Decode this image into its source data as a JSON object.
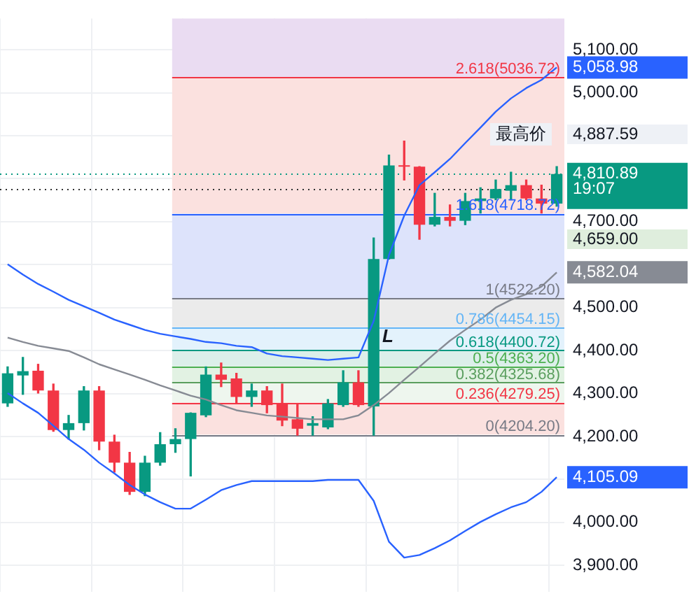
{
  "chart_data": {
    "type": "candlestick",
    "categories": [
      null,
      null,
      null,
      null,
      null,
      null,
      null,
      null,
      null,
      null,
      null,
      null,
      null,
      null,
      null,
      null,
      null,
      null,
      null,
      null,
      null,
      null,
      null,
      null,
      null,
      null,
      null,
      null,
      null,
      null,
      null,
      null,
      null,
      null,
      null,
      null,
      null
    ],
    "ohlc": [
      [
        4277,
        4362,
        4270,
        4347
      ],
      [
        4342,
        4384,
        4298,
        4352
      ],
      [
        4353,
        4368,
        4301,
        4307
      ],
      [
        4307,
        4322,
        4212,
        4215
      ],
      [
        4215,
        4249,
        4194,
        4231
      ],
      [
        4231,
        4316,
        4215,
        4307
      ],
      [
        4307,
        4316,
        4169,
        4188
      ],
      [
        4188,
        4203,
        4117,
        4139
      ],
      [
        4139,
        4163,
        4065,
        4071
      ],
      [
        4071,
        4154,
        4062,
        4139
      ],
      [
        4139,
        4209,
        4133,
        4182
      ],
      [
        4182,
        4218,
        4163,
        4194
      ],
      [
        4194,
        4255,
        4108,
        4255
      ],
      [
        4249,
        4362,
        4246,
        4344
      ],
      [
        4344,
        4371,
        4316,
        4332
      ],
      [
        4335,
        4347,
        4277,
        4292
      ],
      [
        4292,
        4322,
        4270,
        4307
      ],
      [
        4307,
        4316,
        4255,
        4273
      ],
      [
        4277,
        4322,
        4225,
        4237
      ],
      [
        4240,
        4277,
        4203,
        4218
      ],
      [
        4225,
        4246,
        4203,
        4231
      ],
      [
        4221,
        4286,
        4218,
        4277
      ],
      [
        4273,
        4353,
        4270,
        4326
      ],
      [
        4326,
        4353,
        4270,
        4273
      ],
      [
        4270,
        4662,
        4203,
        4613
      ],
      [
        4613,
        4855,
        4613,
        4831
      ],
      [
        4831,
        4887.59,
        4797,
        4828
      ],
      [
        4828,
        4828,
        4659,
        4693
      ],
      [
        4693,
        4766,
        4690,
        4711
      ],
      [
        4711,
        4739,
        4690,
        4702
      ],
      [
        4702,
        4766,
        4693,
        4748
      ],
      [
        4748,
        4779,
        4720,
        4754
      ],
      [
        4754,
        4797,
        4751,
        4776
      ],
      [
        4772,
        4815,
        4751,
        4785
      ],
      [
        4785,
        4797,
        4751,
        4754
      ],
      [
        4754,
        4785,
        4720,
        4742
      ],
      [
        4742,
        4828,
        4736,
        4810.89
      ]
    ],
    "colors": [
      "#089981",
      "#089981",
      "#f23645",
      "#f23645",
      "#089981",
      "#089981",
      "#f23645",
      "#f23645",
      "#f23645",
      "#089981",
      "#089981",
      "#089981",
      "#089981",
      "#089981",
      "#f23645",
      "#f23645",
      "#089981",
      "#f23645",
      "#f23645",
      "#f23645",
      "#089981",
      "#089981",
      "#089981",
      "#f23645",
      "#089981",
      "#089981",
      "#f23645",
      "#f23645",
      "#089981",
      "#f23645",
      "#089981",
      "#089981",
      "#089981",
      "#089981",
      "#f23645",
      "#f23645",
      "#089981"
    ],
    "value_labels": [
      null,
      null,
      null,
      null,
      null,
      null,
      null,
      null,
      null,
      null,
      null,
      null,
      null,
      null,
      null,
      null,
      null,
      null,
      null,
      null,
      null,
      null,
      null,
      null,
      null,
      null,
      null,
      null,
      null,
      null,
      null,
      null,
      null,
      null,
      null,
      null,
      "4,810.89"
    ],
    "series": [
      {
        "type": "line",
        "color": "#2962ff",
        "values": [
          4601,
          4577,
          4555,
          4537,
          4518,
          4503,
          4488,
          4472,
          4460,
          4448,
          4439,
          4433,
          4427,
          4420,
          4417,
          4411,
          4408,
          4393,
          4387,
          4384,
          4381,
          4378,
          4381,
          4384,
          4469,
          4622,
          4714,
          4785,
          4815,
          4846,
          4883,
          4919,
          4956,
          4987,
          5011,
          5030,
          5058.98
        ],
        "value_labels": [
          null,
          null,
          null,
          null,
          null,
          null,
          null,
          null,
          null,
          null,
          null,
          null,
          null,
          null,
          null,
          null,
          null,
          null,
          null,
          null,
          null,
          null,
          null,
          null,
          null,
          null,
          null,
          null,
          null,
          null,
          null,
          null,
          null,
          null,
          null,
          null,
          "5,058.98"
        ]
      },
      {
        "type": "line",
        "color": "#878b94",
        "values": [
          4430,
          4420,
          4411,
          4405,
          4399,
          4384,
          4368,
          4356,
          4344,
          4332,
          4319,
          4307,
          4295,
          4286,
          4273,
          4261,
          4255,
          4249,
          4246,
          4243,
          4240,
          4240,
          4240,
          4249,
          4273,
          4301,
          4332,
          4362,
          4393,
          4423,
          4448,
          4472,
          4500,
          4518,
          4531,
          4549,
          4582.04
        ],
        "value_labels": [
          null,
          null,
          null,
          null,
          null,
          null,
          null,
          null,
          null,
          null,
          null,
          null,
          null,
          null,
          null,
          null,
          null,
          null,
          null,
          null,
          null,
          null,
          null,
          null,
          null,
          null,
          null,
          null,
          null,
          null,
          null,
          null,
          null,
          null,
          null,
          null,
          "4,582.04"
        ]
      },
      {
        "type": "line",
        "color": "#2962ff",
        "values": [
          4301,
          4277,
          4255,
          4225,
          4194,
          4169,
          4139,
          4114,
          4087,
          4065,
          4047,
          4032,
          4032,
          4053,
          4075,
          4087,
          4096,
          4096,
          4096,
          4096,
          4096,
          4099,
          4099,
          4099,
          4050,
          3955,
          3918,
          3924,
          3940,
          3958,
          3980,
          4001,
          4019,
          4035,
          4047,
          4071,
          4105.09
        ],
        "value_labels": [
          null,
          null,
          null,
          null,
          null,
          null,
          null,
          null,
          null,
          null,
          null,
          null,
          null,
          null,
          null,
          null,
          null,
          null,
          null,
          null,
          null,
          null,
          null,
          null,
          null,
          null,
          null,
          null,
          null,
          null,
          null,
          null,
          null,
          null,
          null,
          null,
          "4,105.09"
        ]
      }
    ],
    "ylim": [
      3839,
      5173
    ],
    "yticks": [
      {
        "value": 5100,
        "label": "5,100.00"
      },
      {
        "value": 5000,
        "label": "5,000.00"
      },
      {
        "value": 4900,
        "label": null
      },
      {
        "value": 4800,
        "label": null
      },
      {
        "value": 4700,
        "label": "4,700.00"
      },
      {
        "value": 4600,
        "label": null
      },
      {
        "value": 4500,
        "label": "4,500.00"
      },
      {
        "value": 4400,
        "label": "4,400.00"
      },
      {
        "value": 4300,
        "label": "4,300.00"
      },
      {
        "value": 4200,
        "label": "4,200.00"
      },
      {
        "value": 4100,
        "label": null
      },
      {
        "value": 4000,
        "label": "4,000.00"
      },
      {
        "value": 3900,
        "label": "3,900.00"
      }
    ],
    "ref_lines": [
      {
        "axis": "y",
        "value": 5036.72,
        "label": "2.618(5036.72)",
        "color": "#f23645"
      },
      {
        "axis": "y",
        "value": 4718.72,
        "label": "1.618(4718.72)",
        "color": "#2962ff"
      },
      {
        "axis": "y",
        "value": 4522.2,
        "label": "1(4522.20)",
        "color": "#787b86"
      },
      {
        "axis": "y",
        "value": 4454.15,
        "label": "0.786(4454.15)",
        "color": "#64b5f6"
      },
      {
        "axis": "y",
        "value": 4400.72,
        "label": "0.618(4400.72)",
        "color": "#089981"
      },
      {
        "axis": "y",
        "value": 4363.2,
        "label": "0.5(4363.20)",
        "color": "#4caf50"
      },
      {
        "axis": "y",
        "value": 4325.68,
        "label": "0.382(4325.68)",
        "color": "#5a9e5e"
      },
      {
        "axis": "y",
        "value": 4279.25,
        "label": "0.236(4279.25)",
        "color": "#f23645"
      },
      {
        "axis": "y",
        "value": 4204.2,
        "label": "0(4204.20)",
        "color": "#787b86"
      },
      {
        "axis": "y",
        "value": 4810.89,
        "color": "#089981",
        "line_style": "dotted"
      },
      {
        "axis": "y",
        "value": 4776,
        "color": "#333333",
        "line_style": "dotted"
      }
    ],
    "bands": [
      {
        "axis": "y",
        "from": 5036.72,
        "to": 5173,
        "color": "#eadcf2"
      },
      {
        "axis": "y",
        "from": 4718.72,
        "to": 5036.72,
        "color": "#fbe1df"
      },
      {
        "axis": "y",
        "from": 4522.2,
        "to": 4718.72,
        "color": "#dde3fb"
      },
      {
        "axis": "y",
        "from": 4454.15,
        "to": 4522.2,
        "color": "#ebebeb"
      },
      {
        "axis": "y",
        "from": 4400.72,
        "to": 4454.15,
        "color": "#e3f2fc"
      },
      {
        "axis": "y",
        "from": 4363.2,
        "to": 4400.72,
        "color": "#dcefea"
      },
      {
        "axis": "y",
        "from": 4325.68,
        "to": 4363.2,
        "color": "#e2f2e3"
      },
      {
        "axis": "y",
        "from": 4279.25,
        "to": 4325.68,
        "color": "#eef6ee"
      },
      {
        "axis": "y",
        "from": 4204.2,
        "to": 4279.25,
        "color": "#fbe1df"
      }
    ],
    "annotations": [
      "L",
      "最高价",
      "4,887.59",
      "19:07",
      "4,659.00"
    ],
    "grid": true,
    "legend": false,
    "tick_labels": "y"
  }
}
